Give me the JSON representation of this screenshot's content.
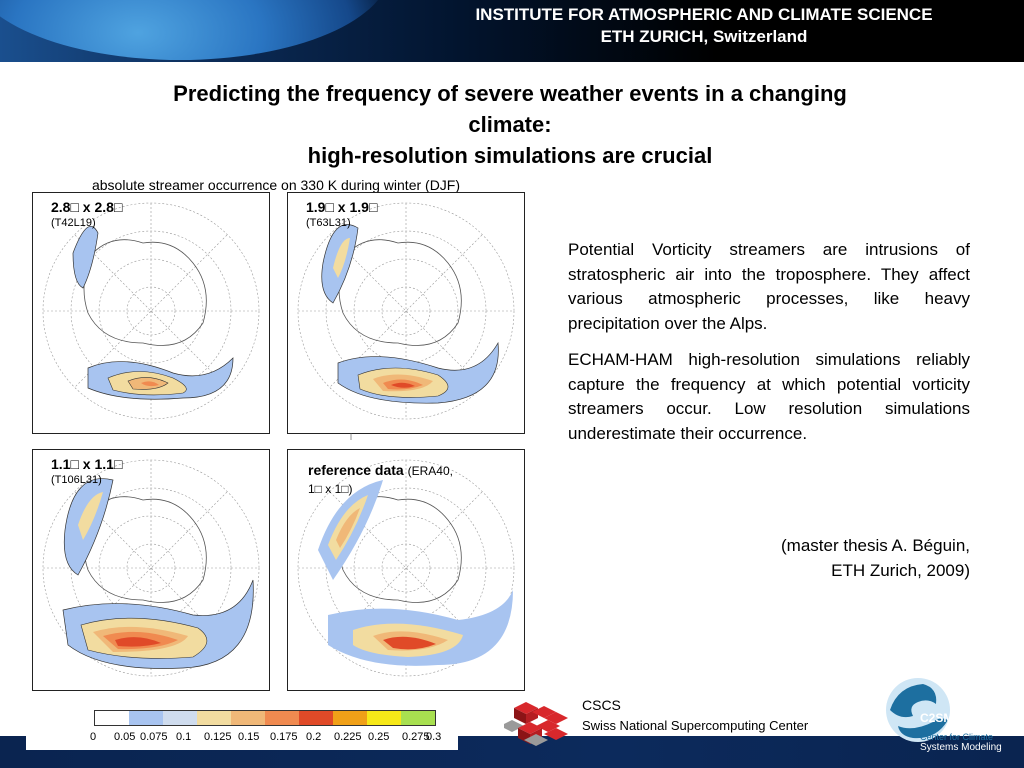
{
  "header": {
    "institute": "INSTITUTE FOR ATMOSPHERIC AND CLIMATE SCIENCE",
    "university": "ETH ZURICH, Switzerland"
  },
  "title": {
    "line1": "Predicting the frequency of severe weather events in a changing",
    "line2": "climate:",
    "line3": "high-resolution simulations are crucial"
  },
  "caption": "absolute streamer occurrence on 330 K during winter (DJF)",
  "panels": [
    {
      "label": "2.8□ x 2.8□",
      "sub": "(T42L19)"
    },
    {
      "label": "1.9□ x 1.9□",
      "sub": "(T63L31)"
    },
    {
      "label": "1.1□ x 1.1□",
      "sub": "(T106L31)"
    },
    {
      "label": "reference data",
      "sub": "(ERA40,",
      "sub2": "1□  x 1□)"
    }
  ],
  "text": {
    "para1": "Potential Vorticity streamers are intrusions of stratospheric air into the troposphere. They affect various atmospheric processes, like heavy precipitation over the Alps.",
    "para2": "ECHAM-HAM high-resolution simulations reliably capture the frequency at which potential vorticity  streamers occur.  Low resolution simulations underestimate their occurrence.",
    "thesis1": "(master thesis A. Béguin,",
    "thesis2": "ETH Zurich, 2009)"
  },
  "colorbar": {
    "colors": [
      "#ffffff",
      "#a8c4f0",
      "#cfdcee",
      "#f2dca0",
      "#f0b878",
      "#f08a50",
      "#e04a28",
      "#f0a018",
      "#f6e818",
      "#a8e050"
    ],
    "ticks": [
      "0",
      "0.05",
      "0.075",
      "0.1",
      "0.125",
      "0.15",
      "0.175",
      "0.2",
      "0.225",
      "0.25",
      "0.275",
      "0.3"
    ]
  },
  "footer": {
    "cscs_name": "CSCS",
    "cscs_full": "Swiss National Supercomputing Center",
    "c2sm_line1": "Center for Climate",
    "c2sm_line2": "Systems Modeling"
  }
}
